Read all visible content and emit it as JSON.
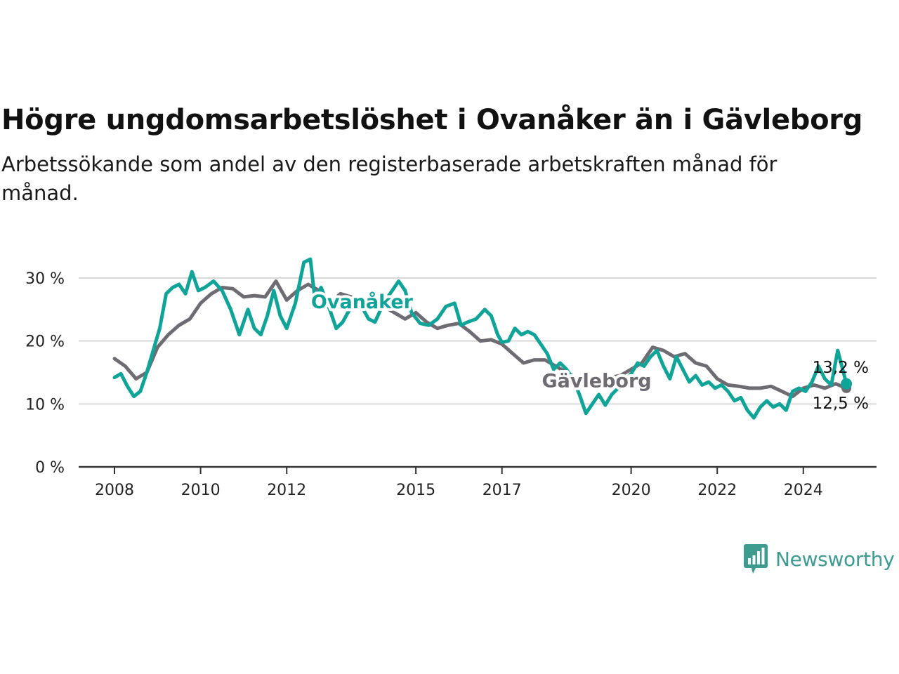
{
  "title": "Högre ungdomsarbetslöshet i Ovanåker än i Gävleborg",
  "subtitle": "Arbetssökande som andel av den registerbaserade arbetskraften månad för månad.",
  "brand": {
    "name": "Newsworthy",
    "icon": "newsworthy-logo-icon"
  },
  "colors": {
    "ovanaker": "#10a498",
    "gavleborg": "#6e6c72",
    "grid": "#d9d9d9",
    "axis": "#333333"
  },
  "chart_data": {
    "type": "line",
    "title": "Högre ungdomsarbetslöshet i Ovanåker än i Gävleborg",
    "ylabel": "",
    "xlabel": "",
    "ylim": [
      0,
      32
    ],
    "y_ticks": [
      0,
      10,
      20,
      30
    ],
    "y_tick_labels": [
      "0 %",
      "10 %",
      "20 %",
      "30 %"
    ],
    "x_ticks": [
      2008,
      2010,
      2012,
      2015,
      2017,
      2020,
      2022,
      2024
    ],
    "x_tick_labels": [
      "2008",
      "2010",
      "2012",
      "2015",
      "2017",
      "2020",
      "2022",
      "2024"
    ],
    "grid": true,
    "legend": "inline labels",
    "series": [
      {
        "name": "Gävleborg",
        "color": "#6e6c72",
        "end_label": "12,5 %",
        "points": [
          [
            2008.0,
            17.2
          ],
          [
            2008.25,
            16.0
          ],
          [
            2008.5,
            14.0
          ],
          [
            2008.75,
            15.0
          ],
          [
            2009.0,
            19.0
          ],
          [
            2009.25,
            21.0
          ],
          [
            2009.5,
            22.5
          ],
          [
            2009.75,
            23.5
          ],
          [
            2010.0,
            26.0
          ],
          [
            2010.25,
            27.5
          ],
          [
            2010.5,
            28.5
          ],
          [
            2010.75,
            28.3
          ],
          [
            2011.0,
            27.0
          ],
          [
            2011.25,
            27.2
          ],
          [
            2011.5,
            27.0
          ],
          [
            2011.75,
            29.5
          ],
          [
            2012.0,
            26.5
          ],
          [
            2012.25,
            28.0
          ],
          [
            2012.5,
            29.0
          ],
          [
            2012.75,
            28.0
          ],
          [
            2013.0,
            26.0
          ],
          [
            2013.25,
            27.5
          ],
          [
            2013.5,
            27.0
          ],
          [
            2013.75,
            26.5
          ],
          [
            2014.0,
            26.0
          ],
          [
            2014.25,
            25.5
          ],
          [
            2014.5,
            24.5
          ],
          [
            2014.75,
            23.5
          ],
          [
            2015.0,
            24.5
          ],
          [
            2015.25,
            23.0
          ],
          [
            2015.5,
            22.0
          ],
          [
            2015.75,
            22.5
          ],
          [
            2016.0,
            22.8
          ],
          [
            2016.25,
            21.5
          ],
          [
            2016.5,
            20.0
          ],
          [
            2016.75,
            20.2
          ],
          [
            2017.0,
            19.5
          ],
          [
            2017.25,
            18.0
          ],
          [
            2017.5,
            16.5
          ],
          [
            2017.75,
            17.0
          ],
          [
            2018.0,
            17.0
          ],
          [
            2018.25,
            16.0
          ],
          [
            2018.5,
            15.0
          ],
          [
            2018.75,
            14.0
          ],
          [
            2019.0,
            13.8
          ],
          [
            2019.25,
            14.0
          ],
          [
            2019.5,
            14.2
          ],
          [
            2019.75,
            14.5
          ],
          [
            2020.0,
            15.5
          ],
          [
            2020.25,
            16.5
          ],
          [
            2020.5,
            19.0
          ],
          [
            2020.75,
            18.5
          ],
          [
            2021.0,
            17.5
          ],
          [
            2021.25,
            18.0
          ],
          [
            2021.5,
            16.5
          ],
          [
            2021.75,
            16.0
          ],
          [
            2022.0,
            14.0
          ],
          [
            2022.25,
            13.0
          ],
          [
            2022.5,
            12.8
          ],
          [
            2022.75,
            12.5
          ],
          [
            2023.0,
            12.5
          ],
          [
            2023.25,
            12.8
          ],
          [
            2023.5,
            12.0
          ],
          [
            2023.75,
            11.2
          ],
          [
            2024.0,
            12.5
          ],
          [
            2024.25,
            13.0
          ],
          [
            2024.5,
            12.5
          ],
          [
            2024.75,
            13.2
          ],
          [
            2025.0,
            12.5
          ]
        ]
      },
      {
        "name": "Ovanåker",
        "color": "#10a498",
        "end_label": "13,2 %",
        "points": [
          [
            2008.0,
            14.2
          ],
          [
            2008.15,
            14.8
          ],
          [
            2008.3,
            12.8
          ],
          [
            2008.45,
            11.2
          ],
          [
            2008.6,
            12.0
          ],
          [
            2008.75,
            15.0
          ],
          [
            2008.9,
            18.5
          ],
          [
            2009.05,
            22.0
          ],
          [
            2009.2,
            27.5
          ],
          [
            2009.35,
            28.5
          ],
          [
            2009.5,
            29.0
          ],
          [
            2009.65,
            27.5
          ],
          [
            2009.8,
            31.0
          ],
          [
            2009.95,
            28.0
          ],
          [
            2010.1,
            28.5
          ],
          [
            2010.3,
            29.5
          ],
          [
            2010.5,
            28.0
          ],
          [
            2010.7,
            25.0
          ],
          [
            2010.9,
            21.0
          ],
          [
            2011.1,
            25.0
          ],
          [
            2011.25,
            22.0
          ],
          [
            2011.4,
            21.0
          ],
          [
            2011.55,
            24.0
          ],
          [
            2011.7,
            28.0
          ],
          [
            2011.85,
            24.0
          ],
          [
            2012.0,
            22.0
          ],
          [
            2012.2,
            26.0
          ],
          [
            2012.4,
            32.5
          ],
          [
            2012.55,
            33.0
          ],
          [
            2012.65,
            27.0
          ],
          [
            2012.8,
            28.5
          ],
          [
            2013.0,
            25.0
          ],
          [
            2013.15,
            22.0
          ],
          [
            2013.3,
            23.0
          ],
          [
            2013.5,
            25.5
          ],
          [
            2013.7,
            26.0
          ],
          [
            2013.9,
            23.5
          ],
          [
            2014.05,
            23.0
          ],
          [
            2014.25,
            26.0
          ],
          [
            2014.45,
            28.0
          ],
          [
            2014.6,
            29.5
          ],
          [
            2014.75,
            28.0
          ],
          [
            2014.9,
            24.5
          ],
          [
            2015.1,
            22.8
          ],
          [
            2015.3,
            22.5
          ],
          [
            2015.5,
            23.5
          ],
          [
            2015.7,
            25.5
          ],
          [
            2015.9,
            26.0
          ],
          [
            2016.05,
            22.5
          ],
          [
            2016.2,
            23.0
          ],
          [
            2016.4,
            23.5
          ],
          [
            2016.6,
            25.0
          ],
          [
            2016.75,
            24.0
          ],
          [
            2016.9,
            21.0
          ],
          [
            2017.0,
            19.8
          ],
          [
            2017.15,
            20.0
          ],
          [
            2017.3,
            22.0
          ],
          [
            2017.45,
            21.0
          ],
          [
            2017.6,
            21.5
          ],
          [
            2017.75,
            21.0
          ],
          [
            2017.9,
            19.5
          ],
          [
            2018.05,
            18.0
          ],
          [
            2018.2,
            15.5
          ],
          [
            2018.35,
            16.5
          ],
          [
            2018.5,
            15.5
          ],
          [
            2018.65,
            14.0
          ],
          [
            2018.8,
            11.5
          ],
          [
            2018.95,
            8.5
          ],
          [
            2019.1,
            10.0
          ],
          [
            2019.25,
            11.5
          ],
          [
            2019.4,
            9.8
          ],
          [
            2019.55,
            11.5
          ],
          [
            2019.7,
            12.5
          ],
          [
            2019.85,
            13.5
          ],
          [
            2020.0,
            14.8
          ],
          [
            2020.15,
            16.5
          ],
          [
            2020.3,
            16.0
          ],
          [
            2020.45,
            17.5
          ],
          [
            2020.6,
            18.5
          ],
          [
            2020.75,
            16.0
          ],
          [
            2020.9,
            14.0
          ],
          [
            2021.05,
            17.5
          ],
          [
            2021.2,
            15.5
          ],
          [
            2021.35,
            13.5
          ],
          [
            2021.5,
            14.5
          ],
          [
            2021.65,
            13.0
          ],
          [
            2021.8,
            13.5
          ],
          [
            2021.95,
            12.5
          ],
          [
            2022.1,
            13.0
          ],
          [
            2022.25,
            12.0
          ],
          [
            2022.4,
            10.5
          ],
          [
            2022.55,
            11.0
          ],
          [
            2022.7,
            9.0
          ],
          [
            2022.85,
            7.8
          ],
          [
            2023.0,
            9.5
          ],
          [
            2023.15,
            10.5
          ],
          [
            2023.3,
            9.5
          ],
          [
            2023.45,
            10.0
          ],
          [
            2023.6,
            9.0
          ],
          [
            2023.75,
            12.0
          ],
          [
            2023.9,
            12.5
          ],
          [
            2024.05,
            12.0
          ],
          [
            2024.2,
            13.5
          ],
          [
            2024.35,
            16.0
          ],
          [
            2024.5,
            14.0
          ],
          [
            2024.65,
            13.0
          ],
          [
            2024.8,
            18.5
          ],
          [
            2025.0,
            13.2
          ]
        ]
      }
    ],
    "annotations": [
      {
        "text": "Ovanåker",
        "series": "Ovanåker",
        "x": 2013.75,
        "y": 26.3
      },
      {
        "text": "Gävleborg",
        "series": "Gävleborg",
        "x": 2019.2,
        "y": 13.8
      }
    ]
  }
}
